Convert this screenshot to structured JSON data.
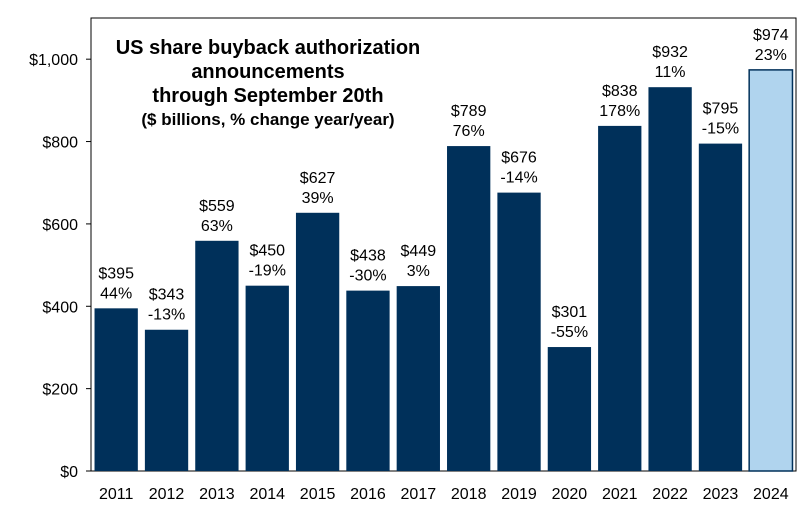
{
  "chart_data": {
    "type": "bar",
    "title_lines": [
      "US share buyback authorization",
      "announcements",
      "through September 20th"
    ],
    "subtitle": "($ billions, % change year/year)",
    "categories": [
      "2011",
      "2012",
      "2013",
      "2014",
      "2015",
      "2016",
      "2017",
      "2018",
      "2019",
      "2020",
      "2021",
      "2022",
      "2023",
      "2024"
    ],
    "values": [
      395,
      343,
      559,
      450,
      627,
      438,
      449,
      789,
      676,
      301,
      838,
      932,
      795,
      974
    ],
    "value_labels": [
      "$395",
      "$343",
      "$559",
      "$450",
      "$627",
      "$438",
      "$449",
      "$789",
      "$676",
      "$301",
      "$838",
      "$932",
      "$795",
      "$974"
    ],
    "pct_labels": [
      "44%",
      "-13%",
      "63%",
      "-19%",
      "39%",
      "-30%",
      "3%",
      "76%",
      "-14%",
      "-55%",
      "178%",
      "11%",
      "-15%",
      "23%"
    ],
    "ylim": [
      0,
      1100
    ],
    "yticks": [
      0,
      200,
      400,
      600,
      800,
      1000
    ],
    "ytick_labels": [
      "$0",
      "$200",
      "$400",
      "$600",
      "$800",
      "$1,000"
    ],
    "xlabel": "",
    "ylabel": "",
    "grid": false,
    "colors": {
      "bar": "#00305A",
      "highlight_bar": "#B0D4EE",
      "highlight_stroke": "#00305A",
      "axis": "#000000",
      "text": "#000000"
    },
    "highlight_categories": [
      "2024"
    ]
  }
}
